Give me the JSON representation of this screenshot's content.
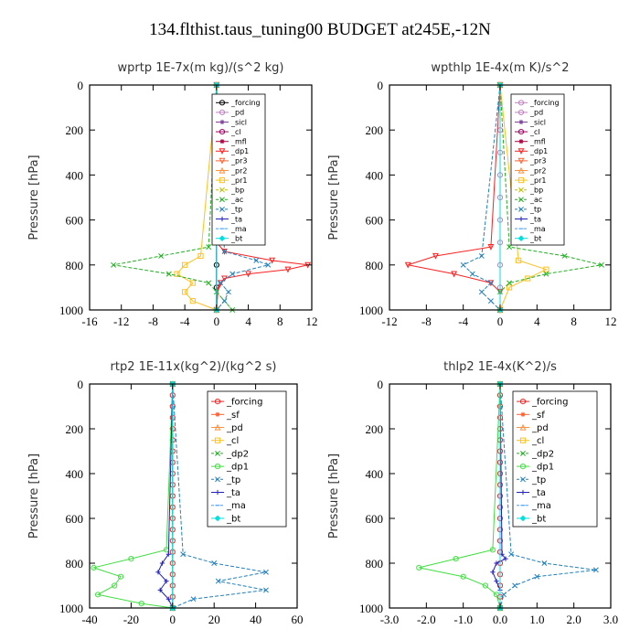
{
  "title": "134.flthist.taus_tuning00  BUDGET at245E,-12N",
  "chart_data": [
    {
      "type": "line",
      "title": "wprtp   1E-7x(m kg)/(s^2 kg)",
      "ylabel": "Pressure [hPa]",
      "xlim": [
        -16,
        12
      ],
      "ylim": [
        1000,
        0
      ],
      "xticks": [
        "-16",
        "-12",
        "-8",
        "-4",
        "0",
        "4",
        "8",
        "12"
      ],
      "yticks": [
        "0",
        "200",
        "400",
        "600",
        "800",
        "1000"
      ],
      "legend_position": "top-right",
      "series": [
        {
          "name": "_forcing",
          "color": "#000000",
          "marker": "o",
          "p": [
            0,
            100,
            200,
            300,
            400,
            500,
            600,
            700,
            800,
            900,
            1000
          ],
          "x": [
            0,
            0,
            0,
            0,
            0,
            0,
            0,
            0,
            0,
            0,
            0
          ]
        },
        {
          "name": "_pd",
          "color": "#c080c0",
          "marker": "o",
          "p": [
            0,
            500,
            1000
          ],
          "x": [
            0,
            0,
            0
          ]
        },
        {
          "name": "_sicl",
          "color": "#8040a0",
          "marker": "*",
          "p": [
            0,
            500,
            1000
          ],
          "x": [
            0,
            0,
            0
          ]
        },
        {
          "name": "_cl",
          "color": "#a00060",
          "marker": "o",
          "p": [
            0,
            500,
            1000
          ],
          "x": [
            0,
            0,
            0
          ]
        },
        {
          "name": "_mfl",
          "color": "#b00040",
          "marker": "*",
          "p": [
            0,
            500,
            1000
          ],
          "x": [
            0,
            0,
            0
          ]
        },
        {
          "name": "_dp1",
          "color": "#ff2020",
          "marker": "v",
          "p": [
            0,
            700,
            740,
            780,
            800,
            820,
            840,
            860,
            880,
            900,
            1000
          ],
          "x": [
            0,
            0,
            1,
            7,
            11.5,
            9,
            4,
            1,
            0.5,
            0.2,
            0
          ]
        },
        {
          "name": "_pr3",
          "color": "#ff6030",
          "marker": "v",
          "p": [
            0,
            1000
          ],
          "x": [
            0,
            0
          ]
        },
        {
          "name": "_pr2",
          "color": "#ff9040",
          "marker": "^",
          "p": [
            0,
            1000
          ],
          "x": [
            0,
            0
          ]
        },
        {
          "name": "_pr1",
          "color": "#ffc020",
          "marker": "s",
          "p": [
            0,
            760,
            800,
            840,
            880,
            920,
            960,
            1000
          ],
          "x": [
            0,
            -2,
            -4,
            -5,
            -3,
            -4,
            -3,
            0
          ]
        },
        {
          "name": "_bp",
          "color": "#c0c000",
          "marker": "x",
          "p": [
            0,
            1000
          ],
          "x": [
            0,
            0
          ]
        },
        {
          "name": "_ac",
          "color": "#20b020",
          "marker": "x",
          "p": [
            0,
            720,
            760,
            800,
            840,
            880,
            920,
            960,
            1000
          ],
          "x": [
            0,
            -1,
            -7,
            -13,
            -6,
            -1,
            0,
            1,
            2
          ]
        },
        {
          "name": "_tp",
          "color": "#2080c0",
          "marker": "x",
          "p": [
            0,
            740,
            780,
            800,
            840,
            880,
            920,
            960,
            1000
          ],
          "x": [
            0,
            1,
            5,
            6.5,
            2,
            0.5,
            1.5,
            1,
            0
          ]
        },
        {
          "name": "_ta",
          "color": "#2020c0",
          "marker": "+",
          "p": [
            0,
            1000
          ],
          "x": [
            0,
            0
          ]
        },
        {
          "name": "_ma",
          "color": "#40a0ff",
          "marker": "-",
          "p": [
            0,
            1000
          ],
          "x": [
            0,
            0
          ]
        },
        {
          "name": "_bt",
          "color": "#00e0e0",
          "marker": "D",
          "p": [
            0,
            1000
          ],
          "x": [
            0,
            0
          ]
        }
      ]
    },
    {
      "type": "line",
      "title": "wpthlp   1E-4x(m K)/s^2",
      "ylabel": "Pressure [hPa]",
      "xlim": [
        -12,
        12
      ],
      "ylim": [
        1000,
        0
      ],
      "xticks": [
        "-12",
        "-8",
        "-4",
        "0",
        "4",
        "8",
        "12"
      ],
      "yticks": [
        "0",
        "200",
        "400",
        "600",
        "800",
        "1000"
      ],
      "legend_position": "top-right",
      "series": [
        {
          "name": "_forcing",
          "color": "#c080c0",
          "marker": "o",
          "p": [
            0,
            100,
            200,
            300,
            400,
            500,
            600,
            700,
            800,
            900,
            1000
          ],
          "x": [
            0,
            0,
            0,
            0,
            0,
            0,
            0,
            0,
            0,
            0,
            0
          ]
        },
        {
          "name": "_pd",
          "color": "#c080c0",
          "marker": "o",
          "p": [
            0,
            1000
          ],
          "x": [
            0,
            0
          ]
        },
        {
          "name": "_sicl",
          "color": "#8040a0",
          "marker": "*",
          "p": [
            0,
            1000
          ],
          "x": [
            0,
            0
          ]
        },
        {
          "name": "_cl",
          "color": "#a00060",
          "marker": "o",
          "p": [
            0,
            1000
          ],
          "x": [
            0,
            0
          ]
        },
        {
          "name": "_mfl",
          "color": "#b00040",
          "marker": "*",
          "p": [
            0,
            1000
          ],
          "x": [
            0,
            0
          ]
        },
        {
          "name": "_dp1",
          "color": "#ff2020",
          "marker": "v",
          "p": [
            0,
            720,
            760,
            800,
            840,
            880,
            920,
            1000
          ],
          "x": [
            0,
            -1,
            -7,
            -10,
            -5,
            -1,
            0,
            0
          ]
        },
        {
          "name": "_pr3",
          "color": "#ff6030",
          "marker": "v",
          "p": [
            0,
            1000
          ],
          "x": [
            0,
            0
          ]
        },
        {
          "name": "_pr2",
          "color": "#ff9040",
          "marker": "^",
          "p": [
            0,
            1000
          ],
          "x": [
            0,
            0
          ]
        },
        {
          "name": "_pr1",
          "color": "#ffc020",
          "marker": "s",
          "p": [
            0,
            780,
            820,
            860,
            900,
            1000
          ],
          "x": [
            0,
            2,
            5,
            3,
            1,
            0
          ]
        },
        {
          "name": "_bp",
          "color": "#c0c000",
          "marker": "x",
          "p": [
            0,
            1000
          ],
          "x": [
            0,
            0
          ]
        },
        {
          "name": "_ac",
          "color": "#20b020",
          "marker": "x",
          "p": [
            0,
            720,
            760,
            800,
            840,
            880,
            920,
            1000
          ],
          "x": [
            0,
            1,
            7,
            11,
            5,
            1,
            0,
            0
          ]
        },
        {
          "name": "_tp",
          "color": "#2080c0",
          "marker": "x",
          "p": [
            0,
            760,
            800,
            840,
            880,
            920,
            960,
            1000
          ],
          "x": [
            0,
            -2,
            -4,
            -3,
            -1,
            -2,
            -1,
            0
          ]
        },
        {
          "name": "_ta",
          "color": "#2020c0",
          "marker": "+",
          "p": [
            0,
            1000
          ],
          "x": [
            0,
            0
          ]
        },
        {
          "name": "_ma",
          "color": "#40a0ff",
          "marker": "-",
          "p": [
            0,
            1000
          ],
          "x": [
            0,
            0
          ]
        },
        {
          "name": "_bt",
          "color": "#00e0e0",
          "marker": "D",
          "p": [
            0,
            1000
          ],
          "x": [
            0,
            0
          ]
        }
      ]
    },
    {
      "type": "line",
      "title": "rtp2   1E-11x(kg^2)/(kg^2 s)",
      "ylabel": "Pressure [hPa]",
      "xlim": [
        -40,
        60
      ],
      "ylim": [
        1000,
        0
      ],
      "xticks": [
        "-40",
        "-20",
        "0",
        "20",
        "40",
        "60"
      ],
      "yticks": [
        "0",
        "200",
        "400",
        "600",
        "800",
        "1000"
      ],
      "legend_position": "top-right",
      "series": [
        {
          "name": "_forcing",
          "color": "#ff2020",
          "marker": "o",
          "p": [
            0,
            50,
            100,
            150,
            200,
            250,
            300,
            350,
            400,
            450,
            500,
            550,
            600,
            650,
            700,
            750,
            800,
            850,
            900,
            950,
            1000
          ],
          "x": [
            0,
            0,
            0,
            0,
            0,
            0,
            0,
            0,
            0,
            0,
            0,
            0,
            0,
            0,
            0,
            0,
            0,
            0,
            0,
            0,
            0
          ]
        },
        {
          "name": "_sf",
          "color": "#ff6030",
          "marker": "*",
          "p": [
            0,
            1000
          ],
          "x": [
            0,
            0
          ]
        },
        {
          "name": "_pd",
          "color": "#ff9040",
          "marker": "^",
          "p": [
            0,
            1000
          ],
          "x": [
            0,
            0
          ]
        },
        {
          "name": "_cl",
          "color": "#ffc020",
          "marker": "s",
          "p": [
            0,
            1000
          ],
          "x": [
            0,
            0
          ]
        },
        {
          "name": "_dp2",
          "color": "#20b020",
          "marker": "x",
          "p": [
            0,
            1000
          ],
          "x": [
            0,
            0
          ]
        },
        {
          "name": "_dp1",
          "color": "#40e040",
          "marker": "o",
          "p": [
            0,
            740,
            780,
            820,
            860,
            900,
            940,
            980,
            1000
          ],
          "x": [
            0,
            -3,
            -20,
            -38,
            -25,
            -28,
            -36,
            -15,
            0
          ]
        },
        {
          "name": "_tp",
          "color": "#2080c0",
          "marker": "x",
          "p": [
            0,
            760,
            800,
            840,
            880,
            920,
            960,
            1000
          ],
          "x": [
            0,
            5,
            20,
            45,
            22,
            45,
            10,
            0
          ]
        },
        {
          "name": "_ta",
          "color": "#2020c0",
          "marker": "+",
          "p": [
            0,
            760,
            800,
            840,
            880,
            920,
            960,
            1000
          ],
          "x": [
            0,
            -2,
            -5,
            -7,
            -3,
            -6,
            -2,
            0
          ]
        },
        {
          "name": "_ma",
          "color": "#40a0ff",
          "marker": "-",
          "p": [
            0,
            1000
          ],
          "x": [
            0,
            0
          ]
        },
        {
          "name": "_bt",
          "color": "#00e0e0",
          "marker": "D",
          "p": [
            0,
            1000
          ],
          "x": [
            0,
            0
          ]
        }
      ]
    },
    {
      "type": "line",
      "title": "thlp2   1E-4x(K^2)/s",
      "ylabel": "Pressure [hPa]",
      "xlim": [
        -3.0,
        3.0
      ],
      "ylim": [
        1000,
        0
      ],
      "xticks": [
        "-3.0",
        "-2.0",
        "-1.0",
        "0.0",
        "1.0",
        "2.0",
        "3.0"
      ],
      "yticks": [
        "0",
        "200",
        "400",
        "600",
        "800",
        "1000"
      ],
      "legend_position": "top-right",
      "series": [
        {
          "name": "_forcing",
          "color": "#ff2020",
          "marker": "o",
          "p": [
            0,
            50,
            100,
            150,
            200,
            250,
            300,
            350,
            400,
            450,
            500,
            550,
            600,
            650,
            700,
            750,
            800,
            850,
            900,
            950,
            1000
          ],
          "x": [
            0,
            0,
            0,
            0,
            0,
            0,
            0,
            0,
            0,
            0,
            0,
            0,
            0,
            0,
            0,
            0,
            0,
            0,
            0,
            0,
            0
          ]
        },
        {
          "name": "_sf",
          "color": "#ff6030",
          "marker": "*",
          "p": [
            0,
            1000
          ],
          "x": [
            0,
            0
          ]
        },
        {
          "name": "_pd",
          "color": "#ff9040",
          "marker": "^",
          "p": [
            0,
            1000
          ],
          "x": [
            0,
            0
          ]
        },
        {
          "name": "_cl",
          "color": "#ffc020",
          "marker": "s",
          "p": [
            0,
            1000
          ],
          "x": [
            0,
            0
          ]
        },
        {
          "name": "_dp2",
          "color": "#20b020",
          "marker": "x",
          "p": [
            0,
            1000
          ],
          "x": [
            0,
            0
          ]
        },
        {
          "name": "_dp1",
          "color": "#40e040",
          "marker": "o",
          "p": [
            0,
            740,
            780,
            820,
            860,
            900,
            940,
            1000
          ],
          "x": [
            0,
            -0.2,
            -1.2,
            -2.2,
            -1.0,
            -0.4,
            -0.1,
            0
          ]
        },
        {
          "name": "_tp",
          "color": "#2080c0",
          "marker": "x",
          "p": [
            0,
            760,
            800,
            830,
            860,
            900,
            940,
            1000
          ],
          "x": [
            0,
            0.3,
            1.2,
            2.6,
            1.0,
            0.4,
            0.1,
            0
          ]
        },
        {
          "name": "_ta",
          "color": "#2020c0",
          "marker": "+",
          "p": [
            0,
            760,
            780,
            800,
            840,
            880,
            920,
            1000
          ],
          "x": [
            0,
            0.05,
            0.15,
            -0.1,
            -0.2,
            -0.1,
            0,
            0
          ]
        },
        {
          "name": "_ma",
          "color": "#40a0ff",
          "marker": "-",
          "p": [
            0,
            1000
          ],
          "x": [
            0,
            0
          ]
        },
        {
          "name": "_bt",
          "color": "#00e0e0",
          "marker": "D",
          "p": [
            0,
            1000
          ],
          "x": [
            0,
            0
          ]
        }
      ]
    }
  ]
}
